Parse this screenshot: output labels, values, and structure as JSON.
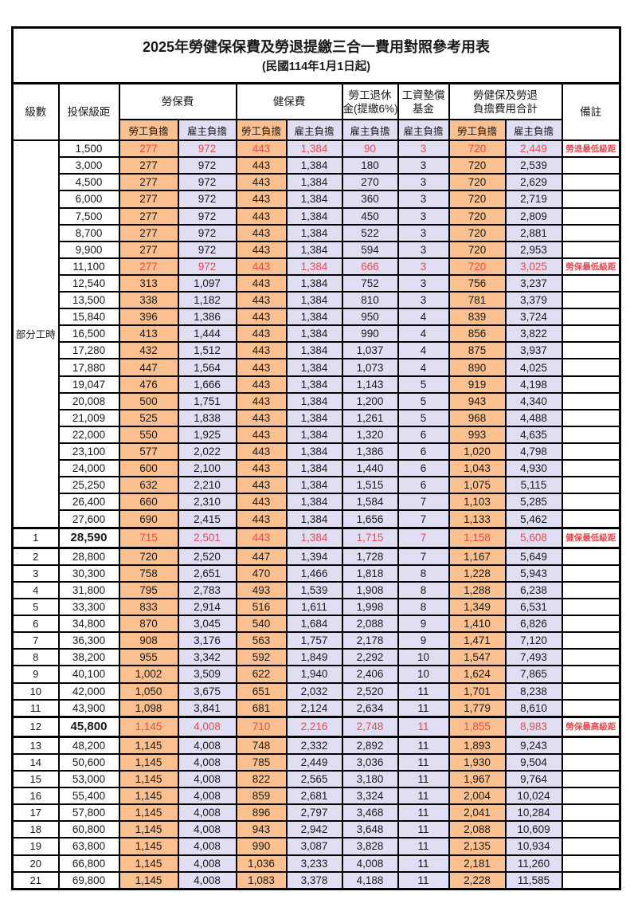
{
  "title_line1": "2025年勞健保保費及勞退提繳三合一費用對照參考用表",
  "title_line2": "(民國114年1月1日起)",
  "header": {
    "level": "級數",
    "bracket": "投保級距",
    "labor": "勞保費",
    "health": "健保費",
    "pension1": "勞工退休",
    "pension2": "金(提繳6%)",
    "fund1": "工資墊償",
    "fund2": "基金",
    "total1": "勞健保及勞退",
    "total2": "負擔費用合計",
    "remark": "備註",
    "worker": "勞工負擔",
    "employer": "雇主負擔"
  },
  "part_time_label": "部分工時",
  "colors": {
    "worker_bg": "#fac090",
    "employer_bg": "#dfdef2",
    "highlight_red": "#e8494f",
    "border": "#000000"
  },
  "rows": [
    {
      "level": "",
      "bracket": "1,500",
      "v": [
        "277",
        "972",
        "443",
        "1,384",
        "90",
        "3",
        "720",
        "2,449"
      ],
      "remark": "勞退最低級距",
      "flags": "r"
    },
    {
      "level": "",
      "bracket": "3,000",
      "v": [
        "277",
        "972",
        "443",
        "1,384",
        "180",
        "3",
        "720",
        "2,539"
      ],
      "remark": "",
      "flags": ""
    },
    {
      "level": "",
      "bracket": "4,500",
      "v": [
        "277",
        "972",
        "443",
        "1,384",
        "270",
        "3",
        "720",
        "2,629"
      ],
      "remark": "",
      "flags": ""
    },
    {
      "level": "",
      "bracket": "6,000",
      "v": [
        "277",
        "972",
        "443",
        "1,384",
        "360",
        "3",
        "720",
        "2,719"
      ],
      "remark": "",
      "flags": ""
    },
    {
      "level": "",
      "bracket": "7,500",
      "v": [
        "277",
        "972",
        "443",
        "1,384",
        "450",
        "3",
        "720",
        "2,809"
      ],
      "remark": "",
      "flags": ""
    },
    {
      "level": "",
      "bracket": "8,700",
      "v": [
        "277",
        "972",
        "443",
        "1,384",
        "522",
        "3",
        "720",
        "2,881"
      ],
      "remark": "",
      "flags": ""
    },
    {
      "level": "",
      "bracket": "9,900",
      "v": [
        "277",
        "972",
        "443",
        "1,384",
        "594",
        "3",
        "720",
        "2,953"
      ],
      "remark": "",
      "flags": ""
    },
    {
      "level": "",
      "bracket": "11,100",
      "v": [
        "277",
        "972",
        "443",
        "1,384",
        "666",
        "3",
        "720",
        "3,025"
      ],
      "remark": "勞保最低級距",
      "flags": "r"
    },
    {
      "level": "",
      "bracket": "12,540",
      "v": [
        "313",
        "1,097",
        "443",
        "1,384",
        "752",
        "3",
        "756",
        "3,237"
      ],
      "remark": "",
      "flags": ""
    },
    {
      "level": "",
      "bracket": "13,500",
      "v": [
        "338",
        "1,182",
        "443",
        "1,384",
        "810",
        "3",
        "781",
        "3,379"
      ],
      "remark": "",
      "flags": ""
    },
    {
      "level": "",
      "bracket": "15,840",
      "v": [
        "396",
        "1,386",
        "443",
        "1,384",
        "950",
        "4",
        "839",
        "3,724"
      ],
      "remark": "",
      "flags": ""
    },
    {
      "level": "",
      "bracket": "16,500",
      "v": [
        "413",
        "1,444",
        "443",
        "1,384",
        "990",
        "4",
        "856",
        "3,822"
      ],
      "remark": "",
      "flags": ""
    },
    {
      "level": "",
      "bracket": "17,280",
      "v": [
        "432",
        "1,512",
        "443",
        "1,384",
        "1,037",
        "4",
        "875",
        "3,937"
      ],
      "remark": "",
      "flags": ""
    },
    {
      "level": "",
      "bracket": "17,880",
      "v": [
        "447",
        "1,564",
        "443",
        "1,384",
        "1,073",
        "4",
        "890",
        "4,025"
      ],
      "remark": "",
      "flags": ""
    },
    {
      "level": "",
      "bracket": "19,047",
      "v": [
        "476",
        "1,666",
        "443",
        "1,384",
        "1,143",
        "5",
        "919",
        "4,198"
      ],
      "remark": "",
      "flags": ""
    },
    {
      "level": "",
      "bracket": "20,008",
      "v": [
        "500",
        "1,751",
        "443",
        "1,384",
        "1,200",
        "5",
        "943",
        "4,340"
      ],
      "remark": "",
      "flags": ""
    },
    {
      "level": "",
      "bracket": "21,009",
      "v": [
        "525",
        "1,838",
        "443",
        "1,384",
        "1,261",
        "5",
        "968",
        "4,488"
      ],
      "remark": "",
      "flags": ""
    },
    {
      "level": "",
      "bracket": "22,000",
      "v": [
        "550",
        "1,925",
        "443",
        "1,384",
        "1,320",
        "6",
        "993",
        "4,635"
      ],
      "remark": "",
      "flags": ""
    },
    {
      "level": "",
      "bracket": "23,100",
      "v": [
        "577",
        "2,022",
        "443",
        "1,384",
        "1,386",
        "6",
        "1,020",
        "4,798"
      ],
      "remark": "",
      "flags": ""
    },
    {
      "level": "",
      "bracket": "24,000",
      "v": [
        "600",
        "2,100",
        "443",
        "1,384",
        "1,440",
        "6",
        "1,043",
        "4,930"
      ],
      "remark": "",
      "flags": ""
    },
    {
      "level": "",
      "bracket": "25,250",
      "v": [
        "632",
        "2,210",
        "443",
        "1,384",
        "1,515",
        "6",
        "1,075",
        "5,115"
      ],
      "remark": "",
      "flags": ""
    },
    {
      "level": "",
      "bracket": "26,400",
      "v": [
        "660",
        "2,310",
        "443",
        "1,384",
        "1,584",
        "7",
        "1,103",
        "5,285"
      ],
      "remark": "",
      "flags": ""
    },
    {
      "level": "",
      "bracket": "27,600",
      "v": [
        "690",
        "2,415",
        "443",
        "1,384",
        "1,656",
        "7",
        "1,133",
        "5,462"
      ],
      "remark": "",
      "flags": ""
    },
    {
      "level": "1",
      "bracket": "28,590",
      "v": [
        "715",
        "2,501",
        "443",
        "1,384",
        "1,715",
        "7",
        "1,158",
        "5,608"
      ],
      "remark": "健保最低級距",
      "flags": "rb"
    },
    {
      "level": "2",
      "bracket": "28,800",
      "v": [
        "720",
        "2,520",
        "447",
        "1,394",
        "1,728",
        "7",
        "1,167",
        "5,649"
      ],
      "remark": "",
      "flags": ""
    },
    {
      "level": "3",
      "bracket": "30,300",
      "v": [
        "758",
        "2,651",
        "470",
        "1,466",
        "1,818",
        "8",
        "1,228",
        "5,943"
      ],
      "remark": "",
      "flags": ""
    },
    {
      "level": "4",
      "bracket": "31,800",
      "v": [
        "795",
        "2,783",
        "493",
        "1,539",
        "1,908",
        "8",
        "1,288",
        "6,238"
      ],
      "remark": "",
      "flags": ""
    },
    {
      "level": "5",
      "bracket": "33,300",
      "v": [
        "833",
        "2,914",
        "516",
        "1,611",
        "1,998",
        "8",
        "1,349",
        "6,531"
      ],
      "remark": "",
      "flags": ""
    },
    {
      "level": "6",
      "bracket": "34,800",
      "v": [
        "870",
        "3,045",
        "540",
        "1,684",
        "2,088",
        "9",
        "1,410",
        "6,826"
      ],
      "remark": "",
      "flags": ""
    },
    {
      "level": "7",
      "bracket": "36,300",
      "v": [
        "908",
        "3,176",
        "563",
        "1,757",
        "2,178",
        "9",
        "1,471",
        "7,120"
      ],
      "remark": "",
      "flags": ""
    },
    {
      "level": "8",
      "bracket": "38,200",
      "v": [
        "955",
        "3,342",
        "592",
        "1,849",
        "2,292",
        "10",
        "1,547",
        "7,493"
      ],
      "remark": "",
      "flags": ""
    },
    {
      "level": "9",
      "bracket": "40,100",
      "v": [
        "1,002",
        "3,509",
        "622",
        "1,940",
        "2,406",
        "10",
        "1,624",
        "7,865"
      ],
      "remark": "",
      "flags": ""
    },
    {
      "level": "10",
      "bracket": "42,000",
      "v": [
        "1,050",
        "3,675",
        "651",
        "2,032",
        "2,520",
        "11",
        "1,701",
        "8,238"
      ],
      "remark": "",
      "flags": ""
    },
    {
      "level": "11",
      "bracket": "43,900",
      "v": [
        "1,098",
        "3,841",
        "681",
        "2,124",
        "2,634",
        "11",
        "1,779",
        "8,610"
      ],
      "remark": "",
      "flags": ""
    },
    {
      "level": "12",
      "bracket": "45,800",
      "v": [
        "1,145",
        "4,008",
        "710",
        "2,216",
        "2,748",
        "11",
        "1,855",
        "8,983"
      ],
      "remark": "勞保最高級距",
      "flags": "rb"
    },
    {
      "level": "13",
      "bracket": "48,200",
      "v": [
        "1,145",
        "4,008",
        "748",
        "2,332",
        "2,892",
        "11",
        "1,893",
        "9,243"
      ],
      "remark": "",
      "flags": ""
    },
    {
      "level": "14",
      "bracket": "50,600",
      "v": [
        "1,145",
        "4,008",
        "785",
        "2,449",
        "3,036",
        "11",
        "1,930",
        "9,504"
      ],
      "remark": "",
      "flags": ""
    },
    {
      "level": "15",
      "bracket": "53,000",
      "v": [
        "1,145",
        "4,008",
        "822",
        "2,565",
        "3,180",
        "11",
        "1,967",
        "9,764"
      ],
      "remark": "",
      "flags": ""
    },
    {
      "level": "16",
      "bracket": "55,400",
      "v": [
        "1,145",
        "4,008",
        "859",
        "2,681",
        "3,324",
        "11",
        "2,004",
        "10,024"
      ],
      "remark": "",
      "flags": ""
    },
    {
      "level": "17",
      "bracket": "57,800",
      "v": [
        "1,145",
        "4,008",
        "896",
        "2,797",
        "3,468",
        "11",
        "2,041",
        "10,284"
      ],
      "remark": "",
      "flags": ""
    },
    {
      "level": "18",
      "bracket": "60,800",
      "v": [
        "1,145",
        "4,008",
        "943",
        "2,942",
        "3,648",
        "11",
        "2,088",
        "10,609"
      ],
      "remark": "",
      "flags": ""
    },
    {
      "level": "19",
      "bracket": "63,800",
      "v": [
        "1,145",
        "4,008",
        "990",
        "3,087",
        "3,828",
        "11",
        "2,135",
        "10,934"
      ],
      "remark": "",
      "flags": ""
    },
    {
      "level": "20",
      "bracket": "66,800",
      "v": [
        "1,145",
        "4,008",
        "1,036",
        "3,233",
        "4,008",
        "11",
        "2,181",
        "11,260"
      ],
      "remark": "",
      "flags": ""
    },
    {
      "level": "21",
      "bracket": "69,800",
      "v": [
        "1,145",
        "4,008",
        "1,083",
        "3,378",
        "4,188",
        "11",
        "2,228",
        "11,585"
      ],
      "remark": "",
      "flags": ""
    }
  ]
}
